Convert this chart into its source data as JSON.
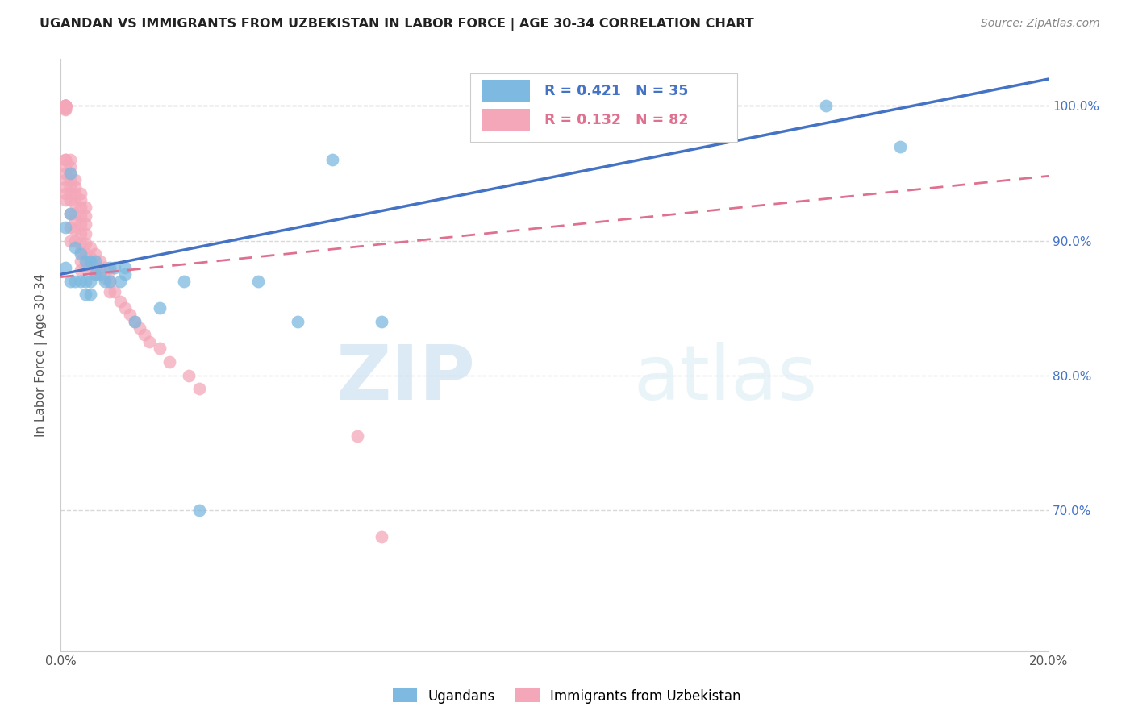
{
  "title": "UGANDAN VS IMMIGRANTS FROM UZBEKISTAN IN LABOR FORCE | AGE 30-34 CORRELATION CHART",
  "source": "Source: ZipAtlas.com",
  "ylabel": "In Labor Force | Age 30-34",
  "legend_label1": "Ugandans",
  "legend_label2": "Immigrants from Uzbekistan",
  "R1": 0.421,
  "N1": 35,
  "R2": 0.132,
  "N2": 82,
  "color_blue": "#7db9e0",
  "color_pink": "#f4a7b9",
  "color_blue_line": "#4472c4",
  "color_pink_line": "#e07090",
  "color_blue_text": "#4472c4",
  "color_pink_text": "#e07090",
  "xmin": 0.0,
  "xmax": 0.2,
  "ymin": 0.595,
  "ymax": 1.035,
  "xticks": [
    0.0,
    0.05,
    0.1,
    0.15,
    0.2
  ],
  "yticks": [
    0.7,
    0.8,
    0.9,
    1.0
  ],
  "blue_x": [
    0.001,
    0.001,
    0.002,
    0.002,
    0.002,
    0.003,
    0.003,
    0.004,
    0.004,
    0.005,
    0.005,
    0.005,
    0.006,
    0.006,
    0.006,
    0.007,
    0.007,
    0.008,
    0.009,
    0.01,
    0.01,
    0.011,
    0.012,
    0.013,
    0.013,
    0.015,
    0.02,
    0.025,
    0.028,
    0.04,
    0.048,
    0.055,
    0.065,
    0.155,
    0.17
  ],
  "blue_y": [
    0.91,
    0.88,
    0.95,
    0.92,
    0.87,
    0.895,
    0.87,
    0.89,
    0.87,
    0.885,
    0.87,
    0.86,
    0.885,
    0.87,
    0.86,
    0.885,
    0.875,
    0.875,
    0.87,
    0.88,
    0.87,
    0.88,
    0.87,
    0.88,
    0.875,
    0.84,
    0.85,
    0.87,
    0.7,
    0.87,
    0.84,
    0.96,
    0.84,
    1.0,
    0.97
  ],
  "pink_x": [
    0.001,
    0.001,
    0.001,
    0.001,
    0.001,
    0.001,
    0.001,
    0.001,
    0.001,
    0.001,
    0.001,
    0.001,
    0.001,
    0.001,
    0.001,
    0.001,
    0.001,
    0.001,
    0.001,
    0.001,
    0.002,
    0.002,
    0.002,
    0.002,
    0.002,
    0.002,
    0.002,
    0.002,
    0.002,
    0.002,
    0.003,
    0.003,
    0.003,
    0.003,
    0.003,
    0.003,
    0.003,
    0.003,
    0.004,
    0.004,
    0.004,
    0.004,
    0.004,
    0.004,
    0.004,
    0.004,
    0.004,
    0.004,
    0.005,
    0.005,
    0.005,
    0.005,
    0.005,
    0.005,
    0.005,
    0.006,
    0.006,
    0.006,
    0.007,
    0.007,
    0.007,
    0.008,
    0.008,
    0.009,
    0.009,
    0.01,
    0.01,
    0.01,
    0.011,
    0.012,
    0.013,
    0.014,
    0.015,
    0.016,
    0.017,
    0.018,
    0.02,
    0.022,
    0.026,
    0.028,
    0.06,
    0.065
  ],
  "pink_y": [
    1.0,
    1.0,
    1.0,
    1.0,
    1.0,
    1.0,
    1.0,
    1.0,
    0.999,
    0.999,
    0.998,
    0.997,
    0.96,
    0.96,
    0.955,
    0.95,
    0.945,
    0.94,
    0.935,
    0.93,
    0.96,
    0.955,
    0.95,
    0.945,
    0.94,
    0.935,
    0.93,
    0.92,
    0.91,
    0.9,
    0.945,
    0.94,
    0.935,
    0.928,
    0.92,
    0.915,
    0.908,
    0.9,
    0.935,
    0.93,
    0.925,
    0.918,
    0.912,
    0.905,
    0.898,
    0.892,
    0.885,
    0.878,
    0.925,
    0.918,
    0.912,
    0.905,
    0.898,
    0.89,
    0.882,
    0.895,
    0.888,
    0.88,
    0.89,
    0.882,
    0.875,
    0.885,
    0.878,
    0.88,
    0.872,
    0.878,
    0.87,
    0.862,
    0.862,
    0.855,
    0.85,
    0.845,
    0.84,
    0.835,
    0.83,
    0.825,
    0.82,
    0.81,
    0.8,
    0.79,
    0.755,
    0.68
  ],
  "watermark_zip": "ZIP",
  "watermark_atlas": "atlas",
  "background_color": "#ffffff",
  "grid_color": "#d8d8d8"
}
